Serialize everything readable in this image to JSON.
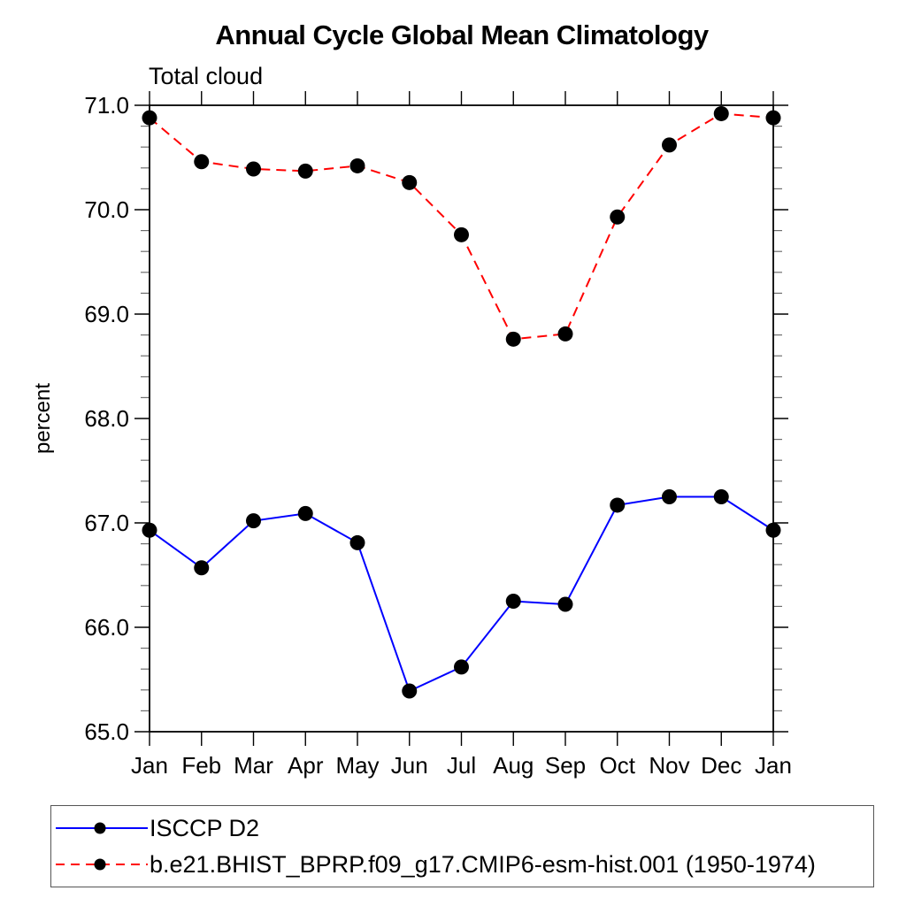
{
  "chart": {
    "title": "Annual Cycle Global Mean Climatology",
    "subtitle": "Total cloud",
    "ylabel": "percent"
  },
  "legend": {
    "position": "bottom",
    "items": [
      {
        "label": "ISCCP D2",
        "color": "#0000ff",
        "style": "solid"
      },
      {
        "label": "b.e21.BHIST_BPRP.f09_g17.CMIP6-esm-hist.001 (1950-1974)",
        "color": "#ff0000",
        "style": "dashed"
      }
    ]
  },
  "chart_data": {
    "type": "line",
    "title": "Annual Cycle Global Mean Climatology",
    "subtitle": "Total cloud",
    "xlabel": "",
    "ylabel": "percent",
    "categories": [
      "Jan",
      "Feb",
      "Mar",
      "Apr",
      "May",
      "Jun",
      "Jul",
      "Aug",
      "Sep",
      "Oct",
      "Nov",
      "Dec",
      "Jan"
    ],
    "ylim": [
      65.0,
      71.0
    ],
    "y_ticklabels": [
      "65.0",
      "66.0",
      "67.0",
      "68.0",
      "69.0",
      "70.0",
      "71.0"
    ],
    "y_major_step": 1.0,
    "y_minor_step": 0.2,
    "grid": false,
    "marker": "filled-black-circle",
    "legend_position": "bottom",
    "series": [
      {
        "name": "ISCCP D2",
        "color": "#0000ff",
        "style": "solid",
        "values": [
          66.93,
          66.57,
          67.02,
          67.09,
          66.81,
          65.39,
          65.62,
          66.25,
          66.22,
          67.17,
          67.25,
          67.25,
          66.93
        ]
      },
      {
        "name": "b.e21.BHIST_BPRP.f09_g17.CMIP6-esm-hist.001 (1950-1974)",
        "color": "#ff0000",
        "style": "dashed",
        "values": [
          70.88,
          70.46,
          70.39,
          70.37,
          70.42,
          70.26,
          69.76,
          68.76,
          68.81,
          69.93,
          70.62,
          70.92,
          70.88
        ]
      }
    ]
  }
}
